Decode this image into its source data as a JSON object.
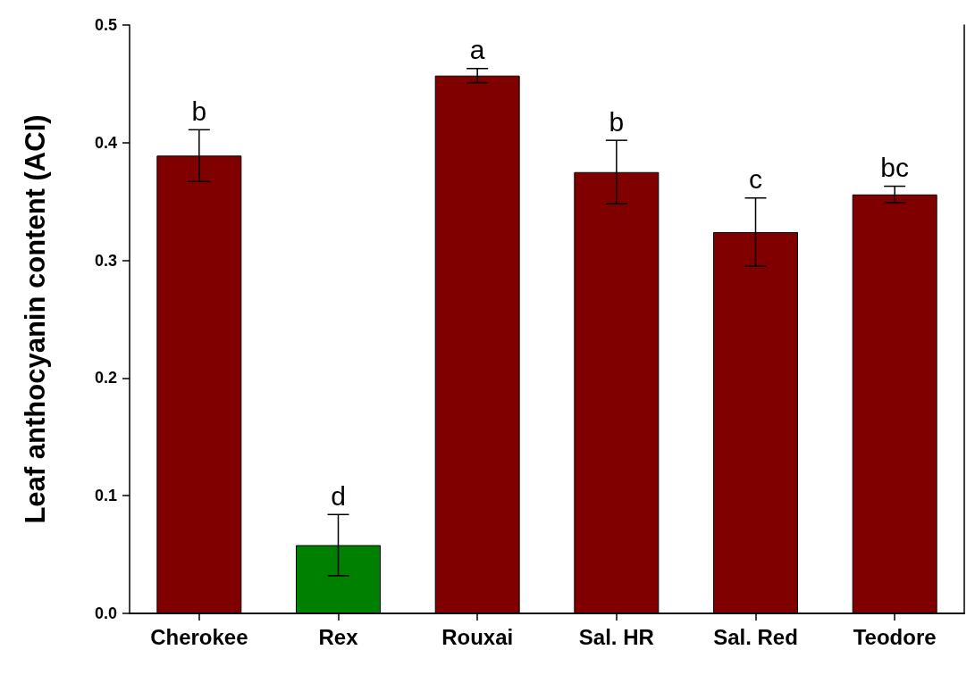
{
  "chart_data": {
    "type": "bar",
    "ylabel": "Leaf anthocyanin content (ACI)",
    "categories": [
      "Cherokee",
      "Rex",
      "Rouxai",
      "Sal. HR",
      "Sal. Red",
      "Teodore"
    ],
    "values": [
      0.389,
      0.058,
      0.457,
      0.375,
      0.324,
      0.356
    ],
    "colors": [
      "#800000",
      "#008000",
      "#800000",
      "#800000",
      "#800000",
      "#800000"
    ],
    "errors": [
      0.022,
      0.026,
      0.006,
      0.027,
      0.029,
      0.007
    ],
    "ylim": [
      0,
      0.5
    ],
    "yticks": [
      {
        "value": 0,
        "label": "0.0"
      },
      0.1,
      0.2,
      0.3,
      0.4,
      0.5
    ],
    "grid": false,
    "annotations": [
      {
        "text": "b",
        "x": "Cherokee",
        "y": 0.411
      },
      {
        "text": "d",
        "x": "Rex",
        "y": 0.084
      },
      {
        "text": "a",
        "x": "Rouxai",
        "y": 0.463
      },
      {
        "text": "b",
        "x": "Sal. HR",
        "y": 0.402
      },
      {
        "text": "c",
        "x": "Sal. Red",
        "y": 0.353
      },
      {
        "text": "bc",
        "x": "Teodore",
        "y": 0.363
      }
    ]
  }
}
